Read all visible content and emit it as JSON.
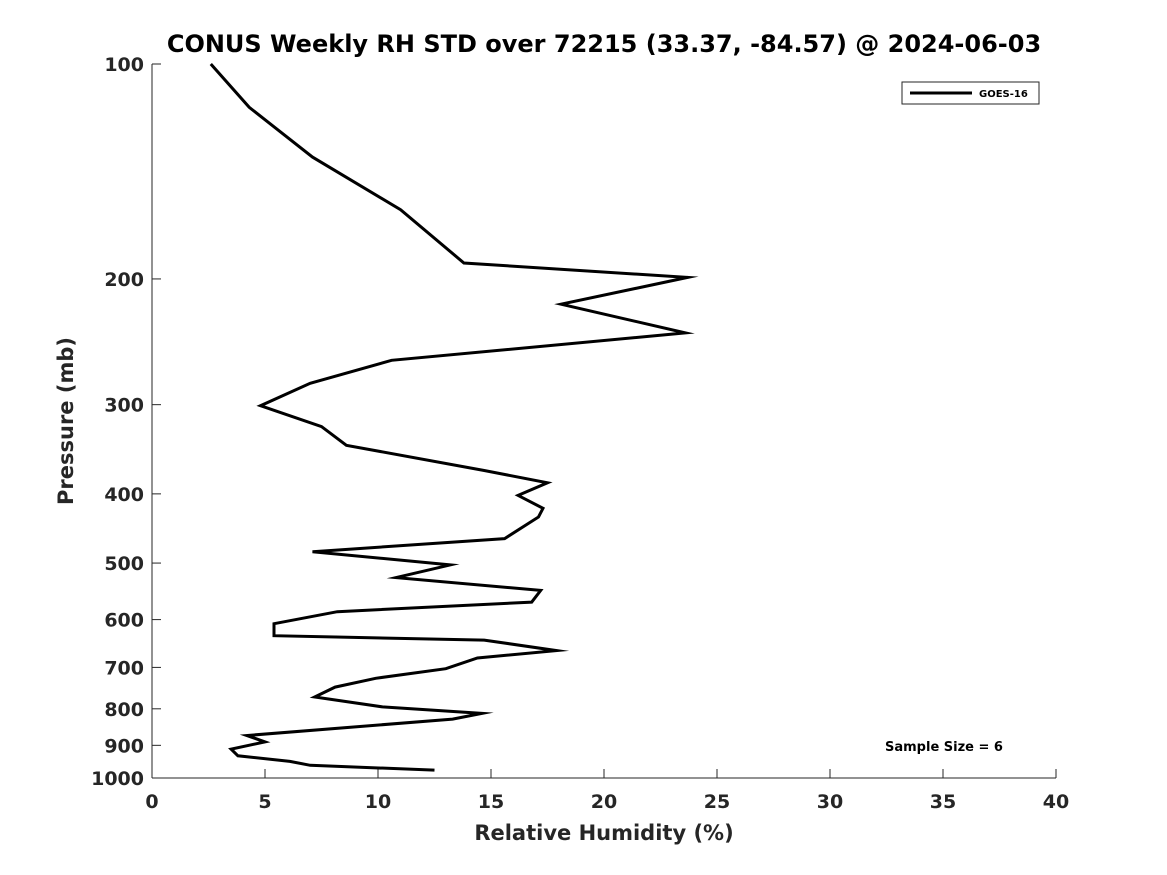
{
  "chart_data": {
    "type": "line",
    "title": "CONUS Weekly RH STD over 72215 (33.37, -84.57) @ 2024-06-03",
    "xlabel": "Relative Humidity (%)",
    "ylabel": "Pressure (mb)",
    "xlim": [
      0,
      40
    ],
    "ylim": [
      1000,
      100
    ],
    "yscale": "log",
    "y_reversed": true,
    "grid": false,
    "legend_position": "top-right",
    "x_ticks": [
      "0",
      "5",
      "10",
      "15",
      "20",
      "25",
      "30",
      "35",
      "40"
    ],
    "y_ticks": [
      "100",
      "200",
      "300",
      "400",
      "500",
      "600",
      "700",
      "800",
      "900",
      "1000"
    ],
    "annotation": "Sample Size = 6",
    "series": [
      {
        "name": "GOES-16",
        "color": "#000000",
        "points": [
          [
            2.6,
            100
          ],
          [
            4.3,
            115
          ],
          [
            7.1,
            135
          ],
          [
            11.0,
            160
          ],
          [
            13.8,
            190
          ],
          [
            23.7,
            199
          ],
          [
            18.1,
            217
          ],
          [
            23.6,
            238
          ],
          [
            10.6,
            260
          ],
          [
            7.0,
            280
          ],
          [
            4.8,
            301
          ],
          [
            7.5,
            322
          ],
          [
            8.6,
            342
          ],
          [
            14.7,
            371
          ],
          [
            17.5,
            386
          ],
          [
            16.2,
            402
          ],
          [
            17.3,
            419
          ],
          [
            17.1,
            431
          ],
          [
            15.6,
            462
          ],
          [
            7.1,
            482
          ],
          [
            13.2,
            503
          ],
          [
            10.8,
            524
          ],
          [
            17.2,
            546
          ],
          [
            16.8,
            567
          ],
          [
            8.2,
            585
          ],
          [
            5.4,
            608
          ],
          [
            5.4,
            632
          ],
          [
            14.7,
            641
          ],
          [
            17.9,
            663
          ],
          [
            14.4,
            679
          ],
          [
            13.0,
            703
          ],
          [
            9.9,
            725
          ],
          [
            8.1,
            746
          ],
          [
            7.2,
            770
          ],
          [
            10.2,
            795
          ],
          [
            14.6,
            812
          ],
          [
            13.3,
            827
          ],
          [
            4.2,
            872
          ],
          [
            5.0,
            890
          ],
          [
            3.5,
            911
          ],
          [
            3.8,
            931
          ],
          [
            6.1,
            948
          ],
          [
            7.0,
            960
          ],
          [
            12.5,
            975
          ]
        ]
      }
    ]
  }
}
